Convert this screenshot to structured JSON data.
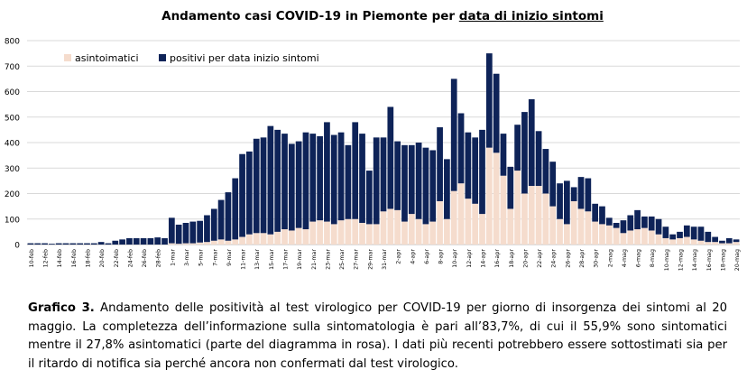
{
  "chart_data": {
    "type": "bar",
    "stacked": true,
    "title_prefix": "Andamento casi COVID-19 in Piemonte per ",
    "title_underlined": "data di inizio sintomi",
    "ylim": [
      0,
      800
    ],
    "yticks": [
      0,
      100,
      200,
      300,
      400,
      500,
      600,
      700,
      800
    ],
    "grid": true,
    "legend_placement": "top-left",
    "categories": [
      "10-feb",
      "11-feb",
      "12-feb",
      "13-feb",
      "14-feb",
      "15-feb",
      "16-feb",
      "17-feb",
      "18-feb",
      "19-feb",
      "20-feb",
      "21-feb",
      "22-feb",
      "23-feb",
      "24-feb",
      "25-feb",
      "26-feb",
      "27-feb",
      "28-feb",
      "29-feb",
      "1-mar",
      "2-mar",
      "3-mar",
      "4-mar",
      "5-mar",
      "6-mar",
      "7-mar",
      "8-mar",
      "9-mar",
      "10-mar",
      "11-mar",
      "12-mar",
      "13-mar",
      "14-mar",
      "15-mar",
      "16-mar",
      "17-mar",
      "18-mar",
      "19-mar",
      "20-mar",
      "21-mar",
      "22-mar",
      "23-mar",
      "24-mar",
      "25-mar",
      "26-mar",
      "27-mar",
      "28-mar",
      "29-mar",
      "30-mar",
      "31-mar",
      "1-apr",
      "2-apr",
      "3-apr",
      "4-apr",
      "5-apr",
      "6-apr",
      "7-apr",
      "8-apr",
      "9-apr",
      "10-apr",
      "11-apr",
      "12-apr",
      "13-apr",
      "14-apr",
      "15-apr",
      "16-apr",
      "17-apr",
      "18-apr",
      "19-apr",
      "20-apr",
      "21-apr",
      "22-apr",
      "23-apr",
      "24-apr",
      "25-apr",
      "26-apr",
      "27-apr",
      "28-apr",
      "29-apr",
      "30-apr",
      "1-mag",
      "2-mag",
      "3-mag",
      "4-mag",
      "5-mag",
      "6-mag",
      "7-mag",
      "8-mag",
      "9-mag",
      "10-mag",
      "11-mag",
      "12-mag",
      "13-mag",
      "14-mag",
      "15-mag",
      "16-mag",
      "17-mag",
      "18-mag",
      "19-mag",
      "20-mag"
    ],
    "xtick_labels": [
      "10-feb",
      "12-feb",
      "14-feb",
      "16-feb",
      "18-feb",
      "20-feb",
      "22-feb",
      "24-feb",
      "26-feb",
      "28-feb",
      "1-mar",
      "3-mar",
      "5-mar",
      "7-mar",
      "9-mar",
      "11-mar",
      "13-mar",
      "15-mar",
      "17-mar",
      "19-mar",
      "21-mar",
      "23-mar",
      "25-mar",
      "27-mar",
      "29-mar",
      "31-mar",
      "2-apr",
      "4-apr",
      "6-apr",
      "8-apr",
      "10-apr",
      "12-apr",
      "14-apr",
      "16-apr",
      "18-apr",
      "20-apr",
      "22-apr",
      "24-apr",
      "26-apr",
      "28-apr",
      "30-apr",
      "2-mag",
      "4-mag",
      "6-mag",
      "8-mag",
      "10-mag",
      "12-mag",
      "14-mag",
      "16-mag",
      "18-mag",
      "20-mag"
    ],
    "series": [
      {
        "name": "asintoimatici",
        "color": "#f5dccd",
        "values": [
          0,
          0,
          0,
          0,
          0,
          0,
          0,
          0,
          0,
          0,
          0,
          0,
          0,
          0,
          0,
          0,
          0,
          0,
          0,
          0,
          5,
          3,
          5,
          5,
          8,
          10,
          15,
          20,
          15,
          20,
          30,
          40,
          45,
          45,
          40,
          50,
          60,
          55,
          65,
          60,
          90,
          95,
          90,
          80,
          95,
          100,
          100,
          85,
          80,
          80,
          130,
          140,
          135,
          90,
          120,
          100,
          80,
          90,
          170,
          100,
          210,
          240,
          180,
          160,
          120,
          380,
          360,
          270,
          140,
          290,
          200,
          230,
          230,
          200,
          150,
          100,
          80,
          170,
          140,
          130,
          90,
          80,
          75,
          65,
          45,
          55,
          60,
          65,
          55,
          40,
          25,
          20,
          25,
          30,
          20,
          15,
          10,
          10,
          5,
          5,
          10
        ]
      },
      {
        "name": "positivi per data inizio sintomi",
        "color": "#0e2358",
        "values": [
          5,
          5,
          5,
          3,
          5,
          5,
          5,
          5,
          5,
          5,
          10,
          5,
          15,
          20,
          25,
          25,
          25,
          25,
          28,
          25,
          100,
          75,
          80,
          85,
          85,
          105,
          125,
          155,
          190,
          240,
          325,
          325,
          370,
          375,
          425,
          400,
          375,
          340,
          340,
          380,
          345,
          330,
          390,
          350,
          345,
          290,
          380,
          350,
          210,
          340,
          290,
          400,
          270,
          300,
          270,
          300,
          300,
          280,
          290,
          235,
          440,
          275,
          260,
          260,
          330,
          370,
          310,
          165,
          165,
          180,
          320,
          340,
          215,
          175,
          175,
          140,
          170,
          55,
          125,
          130,
          70,
          70,
          30,
          20,
          50,
          60,
          75,
          45,
          55,
          60,
          45,
          20,
          25,
          45,
          50,
          55,
          40,
          20,
          10,
          20,
          10
        ]
      }
    ]
  },
  "caption": {
    "label": "Grafico 3.",
    "text": " Andamento delle positività al test virologico per COVID-19 per giorno di insorgenza dei sintomi al 20 maggio. La completezza dell’informazione sulla sintomatologia è pari all’83,7%, di cui il 55,9% sono sintomatici mentre il 27,8% asintomatici (parte del diagramma in rosa). I dati più recenti potrebbero essere sottostimati sia per il ritardo di notifica sia perché ancora non confermati dal test virologico."
  }
}
